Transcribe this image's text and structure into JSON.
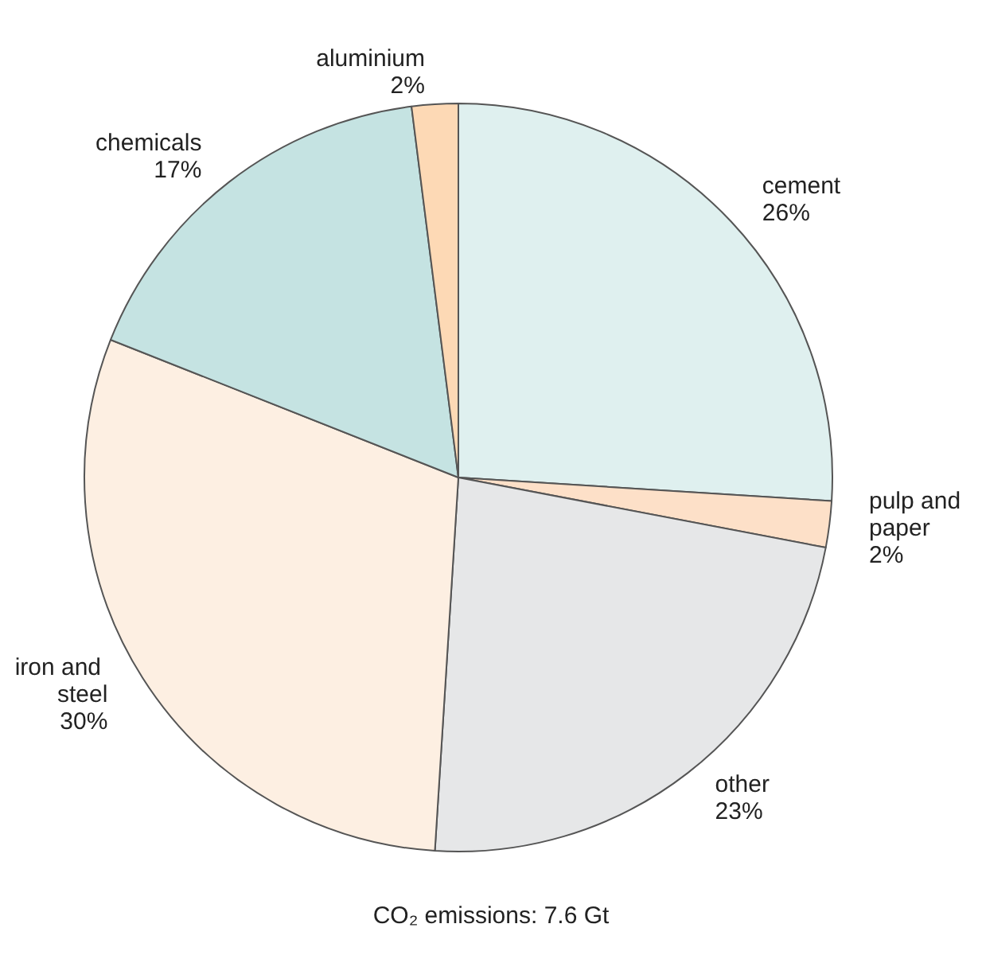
{
  "chart_data": {
    "type": "pie",
    "categories": [
      "cement",
      "pulp and paper",
      "other",
      "iron and steel",
      "chemicals",
      "aluminium"
    ],
    "values": [
      26,
      2,
      23,
      30,
      17,
      2
    ],
    "value_labels": [
      "26%",
      "2%",
      "23%",
      "30%",
      "17%",
      "2%"
    ],
    "colors": [
      "#dff0ef",
      "#fde0c8",
      "#e6e7e8",
      "#fdefe2",
      "#c5e3e2",
      "#fdd9b5"
    ],
    "annotations": [
      "CO₂ emissions: 7.6 Gt"
    ],
    "legend": false
  }
}
